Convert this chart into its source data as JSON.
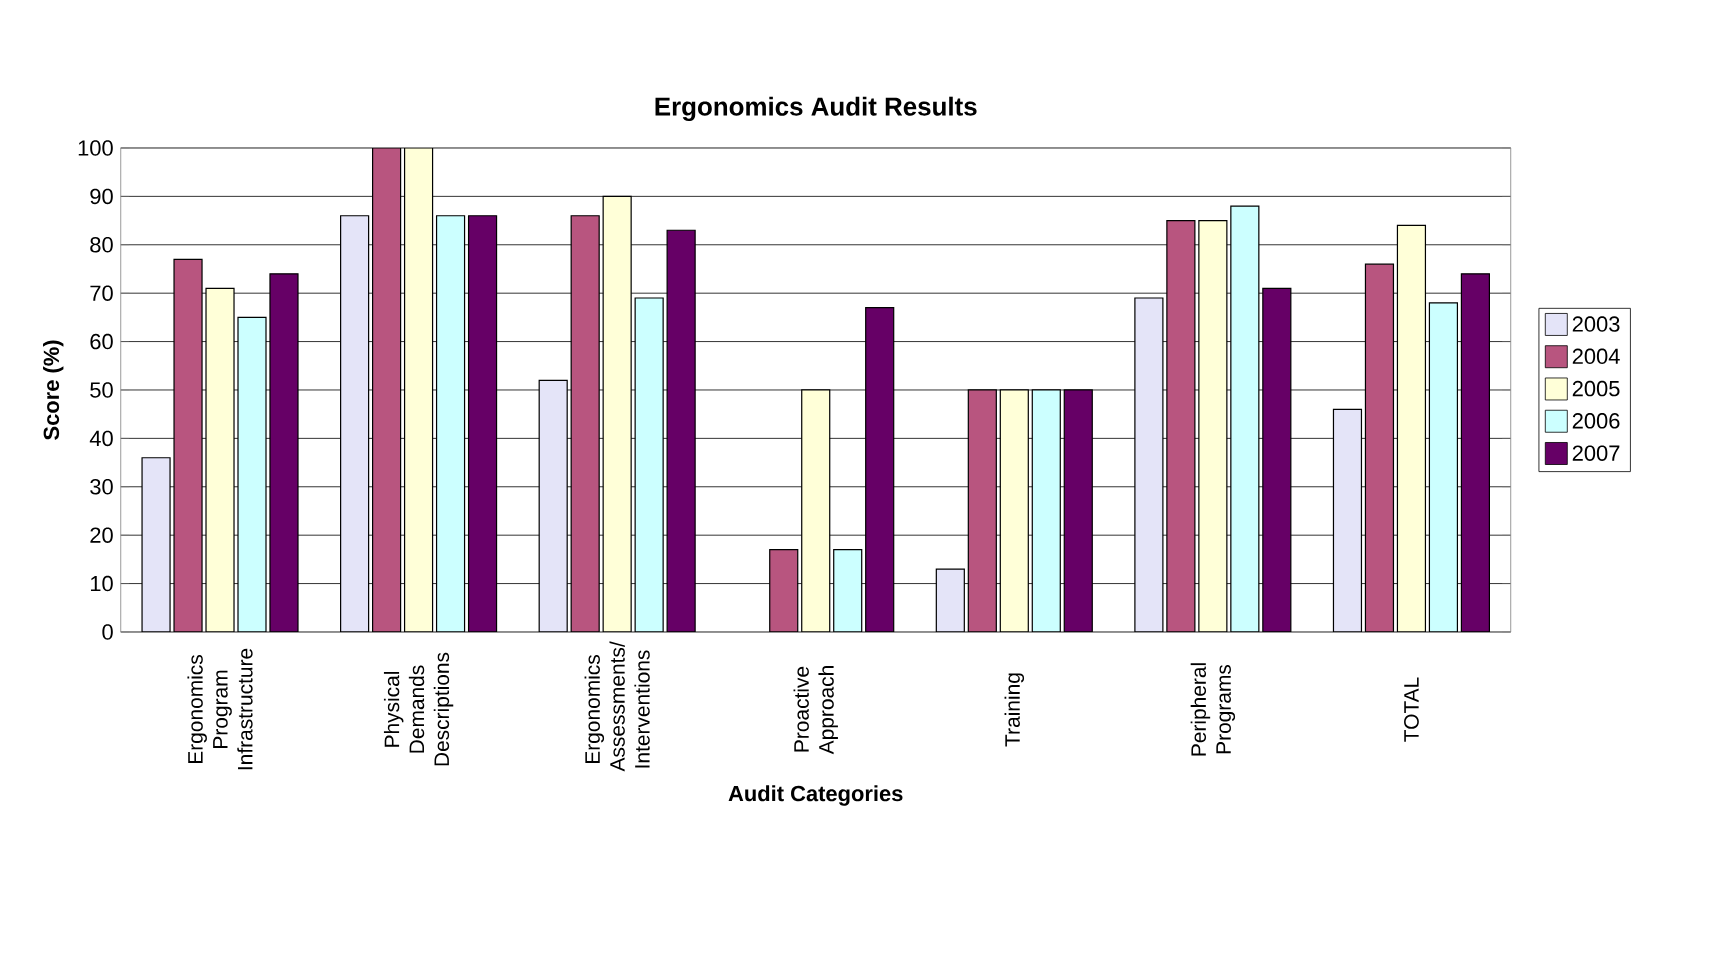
{
  "chart_data": {
    "type": "bar",
    "title": "Ergonomics Audit Results",
    "xlabel": "Audit Categories",
    "ylabel": "Score (%)",
    "categories": [
      "Ergonomics Program Infrastructure",
      "Physical Demands Descriptions",
      "Ergonomics Assessments/ Interventions",
      "Proactive Approach",
      "Training",
      "Peripheral Programs",
      "TOTAL"
    ],
    "series": [
      {
        "name": "2003",
        "color": "#e4e4f8",
        "values": [
          36,
          86,
          52,
          null,
          13,
          69,
          46
        ]
      },
      {
        "name": "2004",
        "color": "#b8557f",
        "values": [
          77,
          100,
          86,
          17,
          50,
          85,
          76
        ]
      },
      {
        "name": "2005",
        "color": "#ffffd8",
        "values": [
          71,
          100,
          90,
          50,
          50,
          85,
          84
        ]
      },
      {
        "name": "2006",
        "color": "#ccffff",
        "values": [
          65,
          86,
          69,
          17,
          50,
          88,
          68
        ]
      },
      {
        "name": "2007",
        "color": "#660066",
        "values": [
          74,
          86,
          83,
          67,
          50,
          71,
          74
        ]
      }
    ],
    "ylim": [
      0,
      100
    ],
    "yticks": [
      0,
      10,
      20,
      30,
      40,
      50,
      60,
      70,
      80,
      90,
      100
    ],
    "grid": "y",
    "legend": "right"
  }
}
